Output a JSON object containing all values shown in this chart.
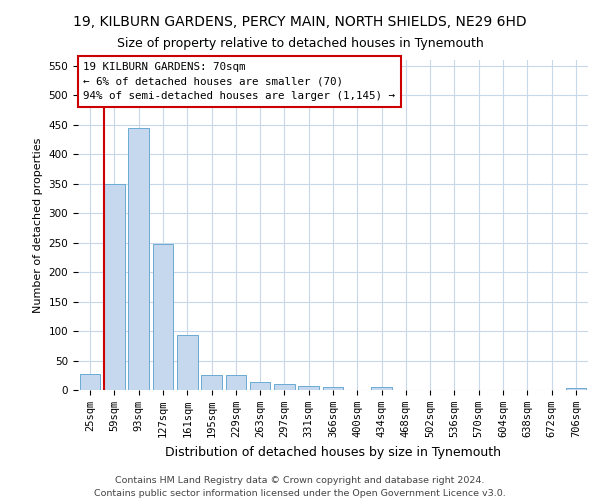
{
  "title": "19, KILBURN GARDENS, PERCY MAIN, NORTH SHIELDS, NE29 6HD",
  "subtitle": "Size of property relative to detached houses in Tynemouth",
  "xlabel": "Distribution of detached houses by size in Tynemouth",
  "ylabel": "Number of detached properties",
  "bar_labels": [
    "25sqm",
    "59sqm",
    "93sqm",
    "127sqm",
    "161sqm",
    "195sqm",
    "229sqm",
    "263sqm",
    "297sqm",
    "331sqm",
    "366sqm",
    "400sqm",
    "434sqm",
    "468sqm",
    "502sqm",
    "536sqm",
    "570sqm",
    "604sqm",
    "638sqm",
    "672sqm",
    "706sqm"
  ],
  "bar_values": [
    27,
    350,
    445,
    247,
    93,
    25,
    25,
    13,
    10,
    7,
    5,
    0,
    5,
    0,
    0,
    0,
    0,
    0,
    0,
    0,
    4
  ],
  "bar_color": "#c5d8ed",
  "bar_edge_color": "#6aaad4",
  "vline_x_idx": 1,
  "vline_color": "#cc0000",
  "annotation_text": "19 KILBURN GARDENS: 70sqm\n← 6% of detached houses are smaller (70)\n94% of semi-detached houses are larger (1,145) →",
  "annotation_box_color": "#ffffff",
  "annotation_box_edge": "#cc0000",
  "ylim": [
    0,
    560
  ],
  "yticks": [
    0,
    50,
    100,
    150,
    200,
    250,
    300,
    350,
    400,
    450,
    500,
    550
  ],
  "footer": "Contains HM Land Registry data © Crown copyright and database right 2024.\nContains public sector information licensed under the Open Government Licence v3.0.",
  "bg_color": "#ffffff",
  "grid_color": "#c8d8e8",
  "title_fontsize": 10,
  "subtitle_fontsize": 9,
  "xlabel_fontsize": 9,
  "ylabel_fontsize": 8,
  "tick_fontsize": 7.5,
  "annotation_fontsize": 7.8,
  "footer_fontsize": 6.8
}
